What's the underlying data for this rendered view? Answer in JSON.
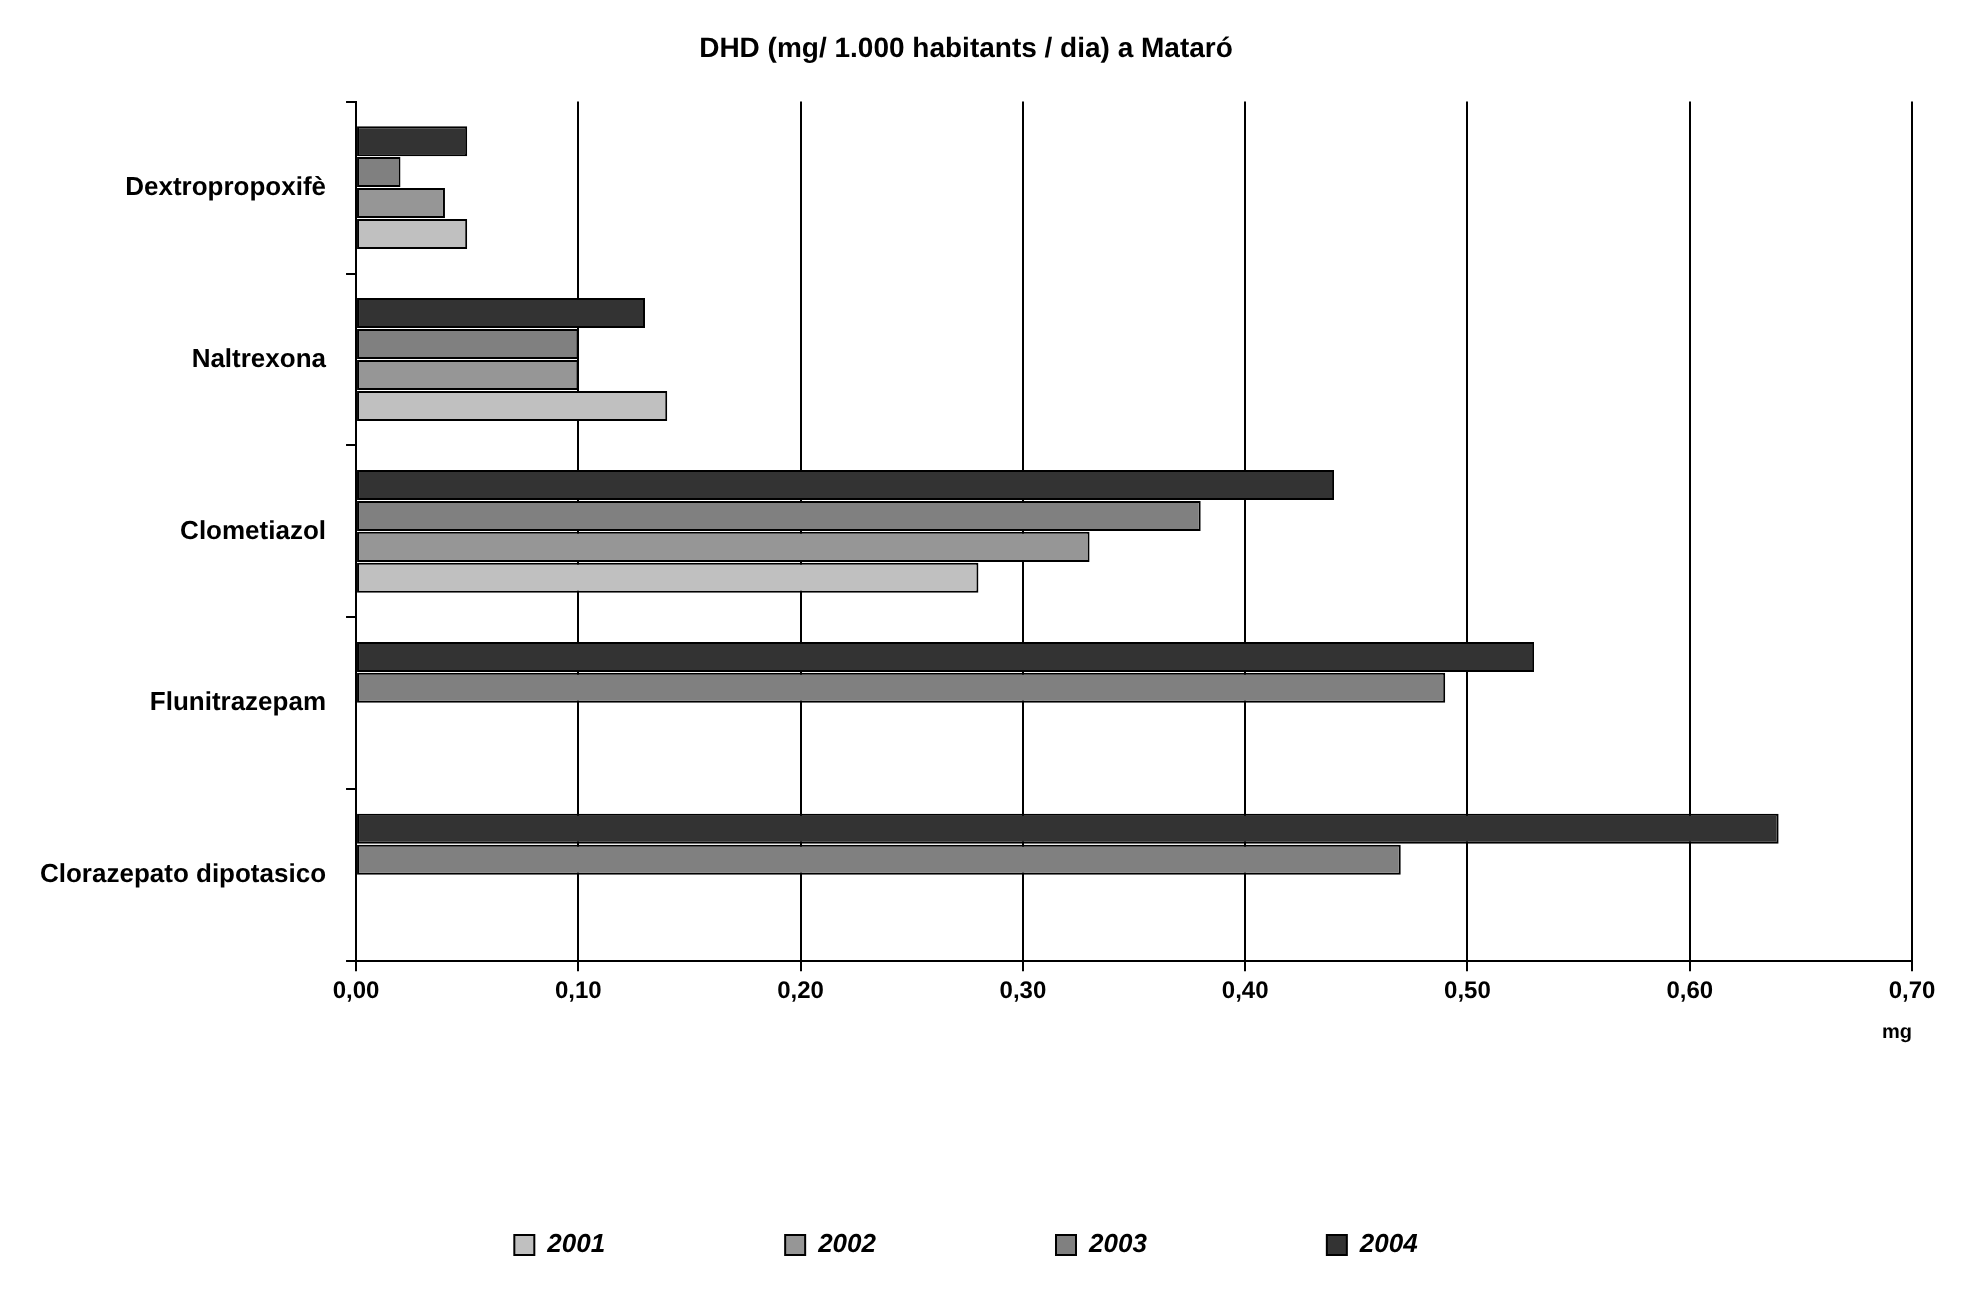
{
  "chart_data": {
    "type": "bar",
    "orientation": "horizontal",
    "title": "DHD (mg/ 1.000 habitants / dia) a Mataró",
    "xlabel": "mg",
    "categories": [
      "Dextropropoxifè",
      "Naltrexona",
      "Clometiazol",
      "Flunitrazepam",
      "Clorazepato dipotasico"
    ],
    "series": [
      {
        "name": "2001",
        "color": "#c0c0c0",
        "values": [
          0.05,
          0.14,
          0.28,
          null,
          null
        ]
      },
      {
        "name": "2002",
        "color": "#969696",
        "values": [
          0.04,
          0.1,
          0.33,
          null,
          null
        ]
      },
      {
        "name": "2003",
        "color": "#808080",
        "values": [
          0.02,
          0.1,
          0.38,
          0.49,
          0.47
        ]
      },
      {
        "name": "2004",
        "color": "#333333",
        "values": [
          0.05,
          0.13,
          0.44,
          0.53,
          0.64
        ]
      }
    ],
    "xlim": [
      0,
      0.7
    ],
    "xticks": [
      {
        "value": 0,
        "label": "0,00"
      },
      {
        "value": 0.1,
        "label": "0,10"
      },
      {
        "value": 0.2,
        "label": "0,20"
      },
      {
        "value": 0.3,
        "label": "0,30"
      },
      {
        "value": 0.4,
        "label": "0,40"
      },
      {
        "value": 0.5,
        "label": "0,50"
      },
      {
        "value": 0.6,
        "label": "0,60"
      },
      {
        "value": 0.7,
        "label": "0,70"
      }
    ],
    "grid": "x",
    "legend": "bottom"
  }
}
